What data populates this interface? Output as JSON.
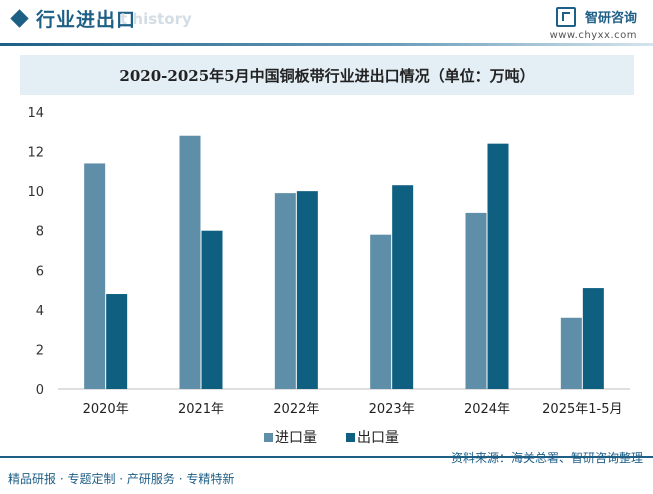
{
  "header": {
    "section_title": "行业进出口",
    "section_ghost": "t history",
    "logo_name": "智研咨询",
    "logo_url": "www.chyxx.com"
  },
  "chart_data": {
    "type": "bar",
    "title": "2020-2025年5月中国铜板带行业进出口情况（单位：万吨）",
    "unit": "万吨",
    "categories": [
      "2020年",
      "2021年",
      "2022年",
      "2023年",
      "2024年",
      "2025年1-5月"
    ],
    "series": [
      {
        "name": "进口量",
        "color": "#5f8fa8",
        "values": [
          11.4,
          12.8,
          9.9,
          7.8,
          8.9,
          3.6
        ]
      },
      {
        "name": "出口量",
        "color": "#0e5f80",
        "values": [
          4.8,
          8.0,
          10.0,
          10.3,
          12.4,
          5.1
        ]
      }
    ],
    "ylim": [
      0,
      14
    ],
    "yticks": [
      0,
      2,
      4,
      6,
      8,
      10,
      12,
      14
    ],
    "legend_position": "bottom-center",
    "grid": false
  },
  "footer": {
    "tags": "精品研报 · 专题定制 · 产研服务 · 专精特新",
    "source": "资料来源：海关总署、智研咨询整理"
  }
}
